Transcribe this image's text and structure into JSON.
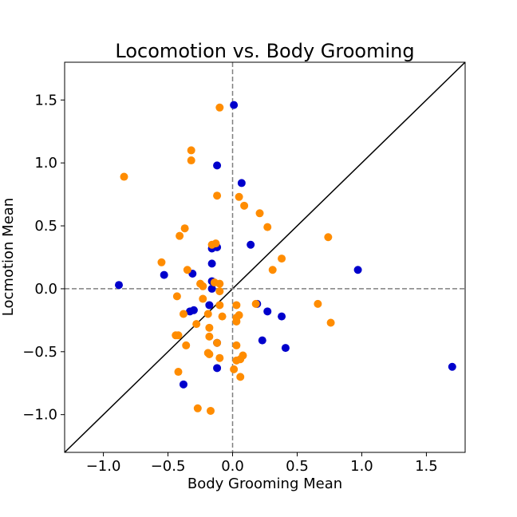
{
  "chart_data": {
    "type": "scatter",
    "title": "Locomotion vs. Body Grooming",
    "xlabel": "Body Grooming Mean",
    "ylabel": "Locmotion Mean",
    "xlim": [
      -1.3,
      1.8
    ],
    "ylim": [
      -1.3,
      1.8
    ],
    "xticks": [
      -1.0,
      -0.5,
      0.0,
      0.5,
      1.0,
      1.5
    ],
    "yticks": [
      -1.0,
      -0.5,
      0.0,
      0.5,
      1.0,
      1.5
    ],
    "xtick_labels": [
      "−1.0",
      "−0.5",
      "0.0",
      "0.5",
      "1.0",
      "1.5"
    ],
    "ytick_labels": [
      "−1.0",
      "−0.5",
      "0.0",
      "0.5",
      "1.0",
      "1.5"
    ],
    "reference_lines": {
      "diagonal": "y = x",
      "horizontal_dashed": 0.0,
      "vertical_dashed": 0.0
    },
    "grid": false,
    "series": [
      {
        "color": "#0000cc",
        "points": [
          [
            0.01,
            1.46
          ],
          [
            -0.12,
            0.98
          ],
          [
            0.07,
            0.84
          ],
          [
            0.14,
            0.35
          ],
          [
            -0.16,
            0.32
          ],
          [
            -0.12,
            0.33
          ],
          [
            -0.16,
            0.2
          ],
          [
            -0.31,
            0.12
          ],
          [
            -0.53,
            0.11
          ],
          [
            -0.88,
            0.03
          ],
          [
            -0.16,
            0.06
          ],
          [
            -0.16,
            0.0
          ],
          [
            -0.18,
            -0.13
          ],
          [
            -0.33,
            -0.18
          ],
          [
            -0.3,
            -0.17
          ],
          [
            0.19,
            -0.12
          ],
          [
            0.27,
            -0.18
          ],
          [
            0.38,
            -0.22
          ],
          [
            0.23,
            -0.41
          ],
          [
            0.41,
            -0.47
          ],
          [
            -0.12,
            -0.43
          ],
          [
            -0.12,
            -0.63
          ],
          [
            -0.38,
            -0.76
          ],
          [
            0.97,
            0.15
          ],
          [
            1.7,
            -0.62
          ]
        ]
      },
      {
        "color": "#ff8c00",
        "points": [
          [
            -0.84,
            0.89
          ],
          [
            -0.32,
            1.1
          ],
          [
            -0.32,
            1.02
          ],
          [
            -0.1,
            1.44
          ],
          [
            -0.12,
            0.74
          ],
          [
            0.05,
            0.73
          ],
          [
            0.09,
            0.66
          ],
          [
            0.21,
            0.6
          ],
          [
            0.27,
            0.49
          ],
          [
            -0.37,
            0.48
          ],
          [
            -0.41,
            0.42
          ],
          [
            -0.16,
            0.35
          ],
          [
            -0.13,
            0.36
          ],
          [
            0.38,
            0.24
          ],
          [
            0.31,
            0.15
          ],
          [
            -0.55,
            0.21
          ],
          [
            -0.35,
            0.15
          ],
          [
            0.74,
            0.41
          ],
          [
            -0.25,
            0.04
          ],
          [
            -0.23,
            0.02
          ],
          [
            -0.14,
            0.05
          ],
          [
            -0.1,
            0.04
          ],
          [
            -0.1,
            -0.02
          ],
          [
            -0.23,
            -0.08
          ],
          [
            -0.1,
            -0.13
          ],
          [
            -0.43,
            -0.06
          ],
          [
            0.03,
            -0.13
          ],
          [
            0.18,
            -0.12
          ],
          [
            0.66,
            -0.12
          ],
          [
            -0.38,
            -0.2
          ],
          [
            -0.19,
            -0.2
          ],
          [
            -0.08,
            -0.22
          ],
          [
            0.03,
            -0.23
          ],
          [
            0.05,
            -0.21
          ],
          [
            0.03,
            -0.26
          ],
          [
            0.76,
            -0.27
          ],
          [
            -0.28,
            -0.28
          ],
          [
            -0.18,
            -0.31
          ],
          [
            -0.44,
            -0.37
          ],
          [
            -0.42,
            -0.37
          ],
          [
            -0.18,
            -0.38
          ],
          [
            -0.36,
            -0.45
          ],
          [
            -0.12,
            -0.43
          ],
          [
            0.03,
            -0.45
          ],
          [
            -0.19,
            -0.51
          ],
          [
            -0.18,
            -0.52
          ],
          [
            0.08,
            -0.53
          ],
          [
            -0.1,
            -0.55
          ],
          [
            0.03,
            -0.57
          ],
          [
            0.06,
            -0.56
          ],
          [
            0.01,
            -0.64
          ],
          [
            0.06,
            -0.7
          ],
          [
            -0.42,
            -0.66
          ],
          [
            -0.27,
            -0.95
          ],
          [
            -0.17,
            -0.97
          ]
        ]
      }
    ]
  }
}
